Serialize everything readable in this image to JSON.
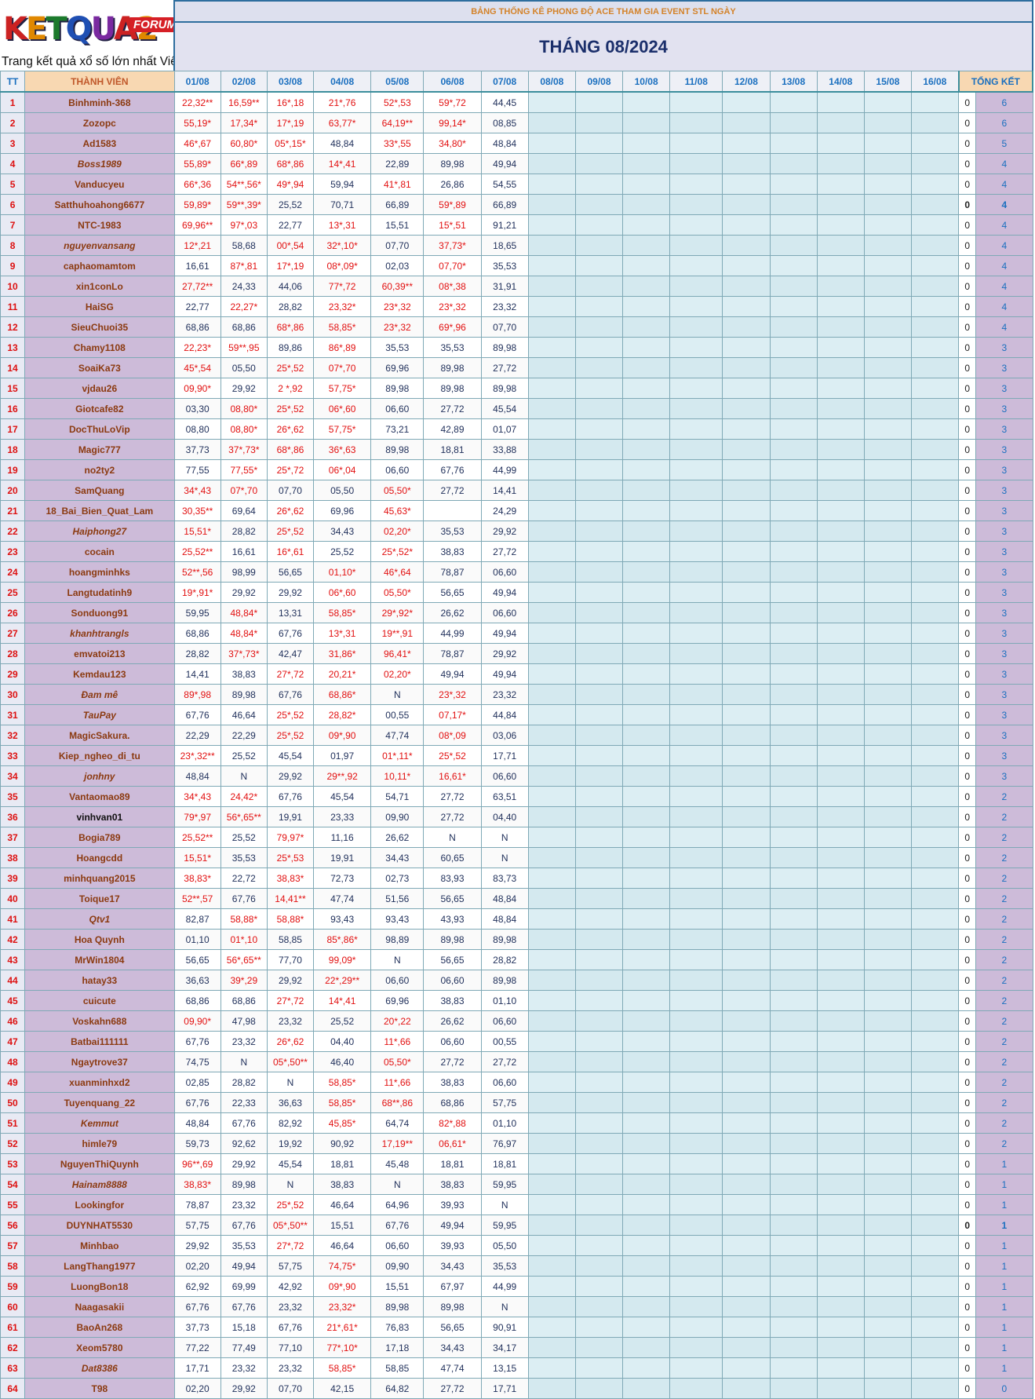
{
  "logo": {
    "word_letters": [
      "K",
      "E",
      "T",
      "Q",
      "U",
      "A",
      "2"
    ],
    "forum": "FORUM",
    "tagline": "Trang kết quả xổ số lớn nhất Việt Nam"
  },
  "header": {
    "title": "BẢNG THỐNG KÊ PHONG ĐỘ ACE THAM GIA EVENT STL NGÀY",
    "month": "THÁNG 08/2024"
  },
  "columns": {
    "tt": "TT",
    "member": "THÀNH VIÊN",
    "dates": [
      "01/08",
      "02/08",
      "03/08",
      "04/08",
      "05/08",
      "06/08",
      "07/08",
      "08/08",
      "09/08",
      "10/08",
      "11/08",
      "12/08",
      "13/08",
      "14/08",
      "15/08",
      "16/08"
    ],
    "summary": "TỔNG KẾT"
  },
  "rows": [
    {
      "tt": "1",
      "name": "Binhminh-368",
      "days": [
        "22,32**",
        "16,59**",
        "16*,18",
        "21*,76",
        "52*,53",
        "59*,72",
        "44,45"
      ],
      "zero": "0",
      "total": "6"
    },
    {
      "tt": "2",
      "name": "Zozopc",
      "days": [
        "55,19*",
        "17,34*",
        "17*,19",
        "63,77*",
        "64,19**",
        "99,14*",
        "08,85"
      ],
      "zero": "0",
      "total": "6"
    },
    {
      "tt": "3",
      "name": "Ad1583",
      "days": [
        "46*,67",
        "60,80*",
        "05*,15*",
        "48,84",
        "33*,55",
        "34,80*",
        "48,84"
      ],
      "zero": "0",
      "total": "5"
    },
    {
      "tt": "4",
      "name": "Boss1989",
      "days": [
        "55,89*",
        "66*,89",
        "68*,86",
        "14*,41",
        "22,89",
        "89,98",
        "49,94"
      ],
      "zero": "0",
      "total": "4"
    },
    {
      "tt": "5",
      "name": "Vanducyeu",
      "days": [
        "66*,36",
        "54**,56*",
        "49*,94",
        "59,94",
        "41*,81",
        "26,86",
        "54,55"
      ],
      "zero": "0",
      "total": "4"
    },
    {
      "tt": "6",
      "name": "Satthuhoahong6677",
      "days": [
        "59,89*",
        "59**,39*",
        "25,52",
        "70,71",
        "66,89",
        "59*,89",
        "66,89"
      ],
      "zero": "0",
      "total": "4"
    },
    {
      "tt": "7",
      "name": "NTC-1983",
      "days": [
        "69,96**",
        "97*,03",
        "22,77",
        "13*,31",
        "15,51",
        "15*,51",
        "91,21"
      ],
      "zero": "0",
      "total": "4"
    },
    {
      "tt": "8",
      "name": "nguyenvansang",
      "days": [
        "12*,21",
        "58,68",
        "00*,54",
        "32*,10*",
        "07,70",
        "37,73*",
        "18,65"
      ],
      "zero": "0",
      "total": "4"
    },
    {
      "tt": "9",
      "name": "caphaomamtom",
      "days": [
        "16,61",
        "87*,81",
        "17*,19",
        "08*,09*",
        "02,03",
        "07,70*",
        "35,53"
      ],
      "zero": "0",
      "total": "4"
    },
    {
      "tt": "10",
      "name": "xin1conLo",
      "days": [
        "27,72**",
        "24,33",
        "44,06",
        "77*,72",
        "60,39**",
        "08*,38",
        "31,91"
      ],
      "zero": "0",
      "total": "4"
    },
    {
      "tt": "11",
      "name": "HaiSG",
      "days": [
        "22,77",
        "22,27*",
        "28,82",
        "23,32*",
        "23*,32",
        "23*,32",
        "23,32"
      ],
      "zero": "0",
      "total": "4"
    },
    {
      "tt": "12",
      "name": "SieuChuoi35",
      "days": [
        "68,86",
        "68,86",
        "68*,86",
        "58,85*",
        "23*,32",
        "69*,96",
        "07,70"
      ],
      "zero": "0",
      "total": "4"
    },
    {
      "tt": "13",
      "name": "Chamy1108",
      "days": [
        "22,23*",
        "59**,95",
        "89,86",
        "86*,89",
        "35,53",
        "35,53",
        "89,98"
      ],
      "zero": "0",
      "total": "3"
    },
    {
      "tt": "14",
      "name": "SoaiKa73",
      "days": [
        "45*,54",
        "05,50",
        "25*,52",
        "07*,70",
        "69,96",
        "89,98",
        "27,72"
      ],
      "zero": "0",
      "total": "3"
    },
    {
      "tt": "15",
      "name": "vjdau26",
      "days": [
        "09,90*",
        "29,92",
        "2 *,92",
        "57,75*",
        "89,98",
        "89,98",
        "89,98"
      ],
      "zero": "0",
      "total": "3"
    },
    {
      "tt": "16",
      "name": "Giotcafe82",
      "days": [
        "03,30",
        "08,80*",
        "25*,52",
        "06*,60",
        "06,60",
        "27,72",
        "45,54"
      ],
      "zero": "0",
      "total": "3"
    },
    {
      "tt": "17",
      "name": "DocThuLoVip",
      "days": [
        "08,80",
        "08,80*",
        "26*,62",
        "57,75*",
        "73,21",
        "42,89",
        "01,07"
      ],
      "zero": "0",
      "total": "3"
    },
    {
      "tt": "18",
      "name": "Magic777",
      "days": [
        "37,73",
        "37*,73*",
        "68*,86",
        "36*,63",
        "89,98",
        "18,81",
        "33,88"
      ],
      "zero": "0",
      "total": "3"
    },
    {
      "tt": "19",
      "name": "no2ty2",
      "days": [
        "77,55",
        "77,55*",
        "25*,72",
        "06*,04",
        "06,60",
        "67,76",
        "44,99"
      ],
      "zero": "0",
      "total": "3"
    },
    {
      "tt": "20",
      "name": "SamQuang",
      "days": [
        "34*,43",
        "07*,70",
        "07,70",
        "05,50",
        "05,50*",
        "27,72",
        "14,41"
      ],
      "zero": "0",
      "total": "3"
    },
    {
      "tt": "21",
      "name": "18_Bai_Bien_Quat_Lam",
      "days": [
        "30,35**",
        "69,64",
        "26*,62",
        "69,96",
        "45,63*",
        "",
        "24,29"
      ],
      "zero": "0",
      "total": "3"
    },
    {
      "tt": "22",
      "name": "Haiphong27",
      "days": [
        "15,51*",
        "28,82",
        "25*,52",
        "34,43",
        "02,20*",
        "35,53",
        "29,92"
      ],
      "zero": "0",
      "total": "3"
    },
    {
      "tt": "23",
      "name": "cocain",
      "days": [
        "25,52**",
        "16,61",
        "16*,61",
        "25,52",
        "25*,52*",
        "38,83",
        "27,72"
      ],
      "zero": "0",
      "total": "3"
    },
    {
      "tt": "24",
      "name": "hoangminhks",
      "days": [
        "52**,56",
        "98,99",
        "56,65",
        "01,10*",
        "46*,64",
        "78,87",
        "06,60"
      ],
      "zero": "0",
      "total": "3"
    },
    {
      "tt": "25",
      "name": "Langtudatinh9",
      "days": [
        "19*,91*",
        "29,92",
        "29,92",
        "06*,60",
        "05,50*",
        "56,65",
        "49,94"
      ],
      "zero": "0",
      "total": "3"
    },
    {
      "tt": "26",
      "name": "Sonduong91",
      "days": [
        "59,95",
        "48,84*",
        "13,31",
        "58,85*",
        "29*,92*",
        "26,62",
        "06,60"
      ],
      "zero": "0",
      "total": "3"
    },
    {
      "tt": "27",
      "name": "khanhtrangls",
      "days": [
        "68,86",
        "48,84*",
        "67,76",
        "13*,31",
        "19**,91",
        "44,99",
        "49,94"
      ],
      "zero": "0",
      "total": "3"
    },
    {
      "tt": "28",
      "name": "emvatoi213",
      "days": [
        "28,82",
        "37*,73*",
        "42,47",
        "31,86*",
        "96,41*",
        "78,87",
        "29,92"
      ],
      "zero": "0",
      "total": "3"
    },
    {
      "tt": "29",
      "name": "Kemdau123",
      "days": [
        "14,41",
        "38,83",
        "27*,72",
        "20,21*",
        "02,20*",
        "49,94",
        "49,94"
      ],
      "zero": "0",
      "total": "3"
    },
    {
      "tt": "30",
      "name": "Đam mê",
      "days": [
        "89*,98",
        "89,98",
        "67,76",
        "68,86*",
        "N",
        "23*,32",
        "23,32"
      ],
      "zero": "0",
      "total": "3"
    },
    {
      "tt": "31",
      "name": "TauPay",
      "days": [
        "67,76",
        "46,64",
        "25*,52",
        "28,82*",
        "00,55",
        "07,17*",
        "44,84"
      ],
      "zero": "0",
      "total": "3"
    },
    {
      "tt": "32",
      "name": "MagicSakura.",
      "days": [
        "22,29",
        "22,29",
        "25*,52",
        "09*,90",
        "47,74",
        "08*,09",
        "03,06"
      ],
      "zero": "0",
      "total": "3"
    },
    {
      "tt": "33",
      "name": "Kiep_ngheo_di_tu",
      "days": [
        "23*,32**",
        "25,52",
        "45,54",
        "01,97",
        "01*,11*",
        "25*,52",
        "17,71"
      ],
      "zero": "0",
      "total": "3"
    },
    {
      "tt": "34",
      "name": "jonhny",
      "days": [
        "48,84",
        "N",
        "29,92",
        "29**,92",
        "10,11*",
        "16,61*",
        "06,60"
      ],
      "zero": "0",
      "total": "3"
    },
    {
      "tt": "35",
      "name": "Vantaomao89",
      "days": [
        "34*,43",
        "24,42*",
        "67,76",
        "45,54",
        "54,71",
        "27,72",
        "63,51"
      ],
      "zero": "0",
      "total": "2"
    },
    {
      "tt": "36",
      "name": "vinhvan01",
      "days": [
        "79*,97",
        "56*,65**",
        "19,91",
        "23,33",
        "09,90",
        "27,72",
        "04,40"
      ],
      "zero": "0",
      "total": "2"
    },
    {
      "tt": "37",
      "name": "Bogia789",
      "days": [
        "25,52**",
        "25,52",
        "79,97*",
        "11,16",
        "26,62",
        "N",
        "N"
      ],
      "zero": "0",
      "total": "2"
    },
    {
      "tt": "38",
      "name": "Hoangcdd",
      "days": [
        "15,51*",
        "35,53",
        "25*,53",
        "19,91",
        "34,43",
        "60,65",
        "N"
      ],
      "zero": "0",
      "total": "2"
    },
    {
      "tt": "39",
      "name": "minhquang2015",
      "days": [
        "38,83*",
        "22,72",
        "38,83*",
        "72,73",
        "02,73",
        "83,93",
        "83,73"
      ],
      "zero": "0",
      "total": "2"
    },
    {
      "tt": "40",
      "name": "Toique17",
      "days": [
        "52**,57",
        "67,76",
        "14,41**",
        "47,74",
        "51,56",
        "56,65",
        "48,84"
      ],
      "zero": "0",
      "total": "2"
    },
    {
      "tt": "41",
      "name": "Qtv1",
      "days": [
        "82,87",
        "58,88*",
        "58,88*",
        "93,43",
        "93,43",
        "43,93",
        "48,84"
      ],
      "zero": "0",
      "total": "2"
    },
    {
      "tt": "42",
      "name": "Hoa Quynh",
      "days": [
        "01,10",
        "01*,10",
        "58,85",
        "85*,86*",
        "98,89",
        "89,98",
        "89,98"
      ],
      "zero": "0",
      "total": "2"
    },
    {
      "tt": "43",
      "name": "MrWin1804",
      "days": [
        "56,65",
        "56*,65**",
        "77,70",
        "99,09*",
        "N",
        "56,65",
        "28,82"
      ],
      "zero": "0",
      "total": "2"
    },
    {
      "tt": "44",
      "name": "hatay33",
      "days": [
        "36,63",
        "39*,29",
        "29,92",
        "22*,29**",
        "06,60",
        "06,60",
        "89,98"
      ],
      "zero": "0",
      "total": "2"
    },
    {
      "tt": "45",
      "name": "cuicute",
      "days": [
        "68,86",
        "68,86",
        "27*,72",
        "14*,41",
        "69,96",
        "38,83",
        "01,10"
      ],
      "zero": "0",
      "total": "2"
    },
    {
      "tt": "46",
      "name": "Voskahn688",
      "days": [
        "09,90*",
        "47,98",
        "23,32",
        "25,52",
        "20*,22",
        "26,62",
        "06,60"
      ],
      "zero": "0",
      "total": "2"
    },
    {
      "tt": "47",
      "name": "Batbai111111",
      "days": [
        "67,76",
        "23,32",
        "26*,62",
        "04,40",
        "11*,66",
        "06,60",
        "00,55"
      ],
      "zero": "0",
      "total": "2"
    },
    {
      "tt": "48",
      "name": "Ngaytrove37",
      "days": [
        "74,75",
        "N",
        "05*,50**",
        "46,40",
        "05,50*",
        "27,72",
        "27,72"
      ],
      "zero": "0",
      "total": "2"
    },
    {
      "tt": "49",
      "name": "xuanminhxd2",
      "days": [
        "02,85",
        "28,82",
        "N",
        "58,85*",
        "11*,66",
        "38,83",
        "06,60"
      ],
      "zero": "0",
      "total": "2"
    },
    {
      "tt": "50",
      "name": "Tuyenquang_22",
      "days": [
        "67,76",
        "22,33",
        "36,63",
        "58,85*",
        "68**,86",
        "68,86",
        "57,75"
      ],
      "zero": "0",
      "total": "2"
    },
    {
      "tt": "51",
      "name": "Kemmut",
      "days": [
        "48,84",
        "67,76",
        "82,92",
        "45,85*",
        "64,74",
        "82*,88",
        "01,10"
      ],
      "zero": "0",
      "total": "2"
    },
    {
      "tt": "52",
      "name": "himle79",
      "days": [
        "59,73",
        "92,62",
        "19,92",
        "90,92",
        "17,19**",
        "06,61*",
        "76,97"
      ],
      "zero": "0",
      "total": "2"
    },
    {
      "tt": "53",
      "name": "NguyenThiQuynh",
      "days": [
        "96**,69",
        "29,92",
        "45,54",
        "18,81",
        "45,48",
        "18,81",
        "18,81"
      ],
      "zero": "0",
      "total": "1"
    },
    {
      "tt": "54",
      "name": "Hainam8888",
      "days": [
        "38,83*",
        "89,98",
        "N",
        "38,83",
        "N",
        "38,83",
        "59,95"
      ],
      "zero": "0",
      "total": "1"
    },
    {
      "tt": "55",
      "name": "Lookingfor",
      "days": [
        "78,87",
        "23,32",
        "25*,52",
        "46,64",
        "64,96",
        "39,93",
        "N"
      ],
      "zero": "0",
      "total": "1"
    },
    {
      "tt": "56",
      "name": "DUYNHAT5530",
      "days": [
        "57,75",
        "67,76",
        "05*,50**",
        "15,51",
        "67,76",
        "49,94",
        "59,95"
      ],
      "zero": "0",
      "total": "1"
    },
    {
      "tt": "57",
      "name": "Minhbao",
      "days": [
        "29,92",
        "35,53",
        "27*,72",
        "46,64",
        "06,60",
        "39,93",
        "05,50"
      ],
      "zero": "0",
      "total": "1"
    },
    {
      "tt": "58",
      "name": "LangThang1977",
      "days": [
        "02,20",
        "49,94",
        "57,75",
        "74,75*",
        "09,90",
        "34,43",
        "35,53"
      ],
      "zero": "0",
      "total": "1"
    },
    {
      "tt": "59",
      "name": "LuongBon18",
      "days": [
        "62,92",
        "69,99",
        "42,92",
        "09*,90",
        "15,51",
        "67,97",
        "44,99"
      ],
      "zero": "0",
      "total": "1"
    },
    {
      "tt": "60",
      "name": "Naagasakii",
      "days": [
        "67,76",
        "67,76",
        "23,32",
        "23,32*",
        "89,98",
        "89,98",
        "N"
      ],
      "zero": "0",
      "total": "1"
    },
    {
      "tt": "61",
      "name": "BaoAn268",
      "days": [
        "37,73",
        "15,18",
        "67,76",
        "21*,61*",
        "76,83",
        "56,65",
        "90,91"
      ],
      "zero": "0",
      "total": "1"
    },
    {
      "tt": "62",
      "name": "Xeom5780",
      "days": [
        "77,22",
        "77,49",
        "77,10",
        "77*,10*",
        "17,18",
        "34,43",
        "34,17"
      ],
      "zero": "0",
      "total": "1"
    },
    {
      "tt": "63",
      "name": "Dat8386",
      "days": [
        "17,71",
        "23,32",
        "23,32",
        "58,85*",
        "58,85",
        "47,74",
        "13,15"
      ],
      "zero": "0",
      "total": "1"
    },
    {
      "tt": "64",
      "name": "T98",
      "days": [
        "02,20",
        "29,92",
        "07,70",
        "42,15",
        "64,82",
        "27,72",
        "17,71"
      ],
      "zero": "0",
      "total": "0"
    }
  ],
  "italic_names": [
    "Boss1989",
    "nguyenvansang",
    "Haiphong27",
    "khanhtrangls",
    "Đam mê",
    "TauPay",
    "jonhny",
    "Qtv1",
    "Kemmut",
    "Hainam8888",
    "Dat8386"
  ],
  "dark_names": [
    "vinhvan01"
  ],
  "bold_zero_rows": [
    "6",
    "56"
  ],
  "colors": {
    "hit": "#e21010",
    "normal": "#1f2f5a",
    "member_bg": "#cdbbd9",
    "summary_blue": "#1a6fbf",
    "header_orange": "#d4832a",
    "month_navy": "#1b2f6b"
  }
}
